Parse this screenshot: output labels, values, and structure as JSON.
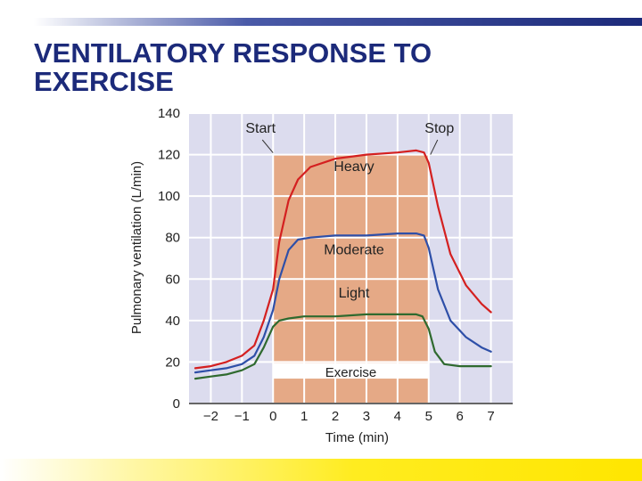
{
  "slide": {
    "title_line1": "VENTILATORY RESPONSE TO",
    "title_line2": "EXERCISE"
  },
  "colors": {
    "title": "#1c2a7a",
    "plot_background": "#dcdcee",
    "exercise_band": "#e5a986",
    "grid": "#ffffff",
    "heavy": "#d42020",
    "moderate": "#2e4fa8",
    "light": "#2f6a2f",
    "bottom_band": "#ffe600"
  },
  "chart_data": {
    "type": "line",
    "title": "",
    "xlabel": "Time (min)",
    "ylabel": "Pulmonary ventilation (L/min)",
    "xlim": [
      -2.7,
      7.7
    ],
    "ylim": [
      0,
      140
    ],
    "x_ticks": [
      -2,
      -1,
      0,
      1,
      2,
      3,
      4,
      5,
      6,
      7
    ],
    "x_tick_labels": [
      "−2",
      "−1",
      "0",
      "1",
      "2",
      "3",
      "4",
      "5",
      "6",
      "7"
    ],
    "y_ticks": [
      0,
      20,
      40,
      60,
      80,
      100,
      120,
      140
    ],
    "y_tick_labels": [
      "0",
      "20",
      "40",
      "60",
      "80",
      "100",
      "120",
      "140"
    ],
    "grid": true,
    "exercise_interval": [
      0,
      5
    ],
    "exercise_label": "Exercise",
    "exercise_band_top": 120,
    "annotations": [
      {
        "text": "Start",
        "x": 0
      },
      {
        "text": "Stop",
        "x": 5
      }
    ],
    "series": [
      {
        "name": "Heavy",
        "color": "#d42020",
        "label_at": [
          2.6,
          112
        ],
        "points": [
          [
            -2.5,
            17
          ],
          [
            -2,
            18
          ],
          [
            -1.5,
            20
          ],
          [
            -1,
            23
          ],
          [
            -0.6,
            28
          ],
          [
            -0.3,
            40
          ],
          [
            0,
            55
          ],
          [
            0.2,
            78
          ],
          [
            0.5,
            98
          ],
          [
            0.8,
            108
          ],
          [
            1.2,
            114
          ],
          [
            2,
            118
          ],
          [
            3,
            120
          ],
          [
            4,
            121
          ],
          [
            4.6,
            122
          ],
          [
            4.85,
            121
          ],
          [
            5,
            116
          ],
          [
            5.3,
            95
          ],
          [
            5.7,
            72
          ],
          [
            6.2,
            57
          ],
          [
            6.7,
            48
          ],
          [
            7,
            44
          ]
        ]
      },
      {
        "name": "Moderate",
        "color": "#2e4fa8",
        "label_at": [
          2.6,
          72
        ],
        "points": [
          [
            -2.5,
            15
          ],
          [
            -2,
            16
          ],
          [
            -1.5,
            17
          ],
          [
            -1,
            19
          ],
          [
            -0.6,
            23
          ],
          [
            -0.3,
            32
          ],
          [
            0,
            45
          ],
          [
            0.2,
            60
          ],
          [
            0.5,
            74
          ],
          [
            0.8,
            79
          ],
          [
            1.2,
            80
          ],
          [
            2,
            81
          ],
          [
            3,
            81
          ],
          [
            4,
            82
          ],
          [
            4.6,
            82
          ],
          [
            4.85,
            81
          ],
          [
            5,
            75
          ],
          [
            5.3,
            55
          ],
          [
            5.7,
            40
          ],
          [
            6.2,
            32
          ],
          [
            6.7,
            27
          ],
          [
            7,
            25
          ]
        ]
      },
      {
        "name": "Light",
        "color": "#2f6a2f",
        "label_at": [
          2.6,
          51
        ],
        "points": [
          [
            -2.5,
            12
          ],
          [
            -2,
            13
          ],
          [
            -1.5,
            14
          ],
          [
            -1,
            16
          ],
          [
            -0.6,
            19
          ],
          [
            -0.3,
            27
          ],
          [
            0,
            37
          ],
          [
            0.2,
            40
          ],
          [
            0.5,
            41
          ],
          [
            1,
            42
          ],
          [
            2,
            42
          ],
          [
            3,
            43
          ],
          [
            4,
            43
          ],
          [
            4.6,
            43
          ],
          [
            4.8,
            42
          ],
          [
            5,
            36
          ],
          [
            5.2,
            25
          ],
          [
            5.5,
            19
          ],
          [
            6,
            18
          ],
          [
            7,
            18
          ]
        ]
      }
    ]
  }
}
